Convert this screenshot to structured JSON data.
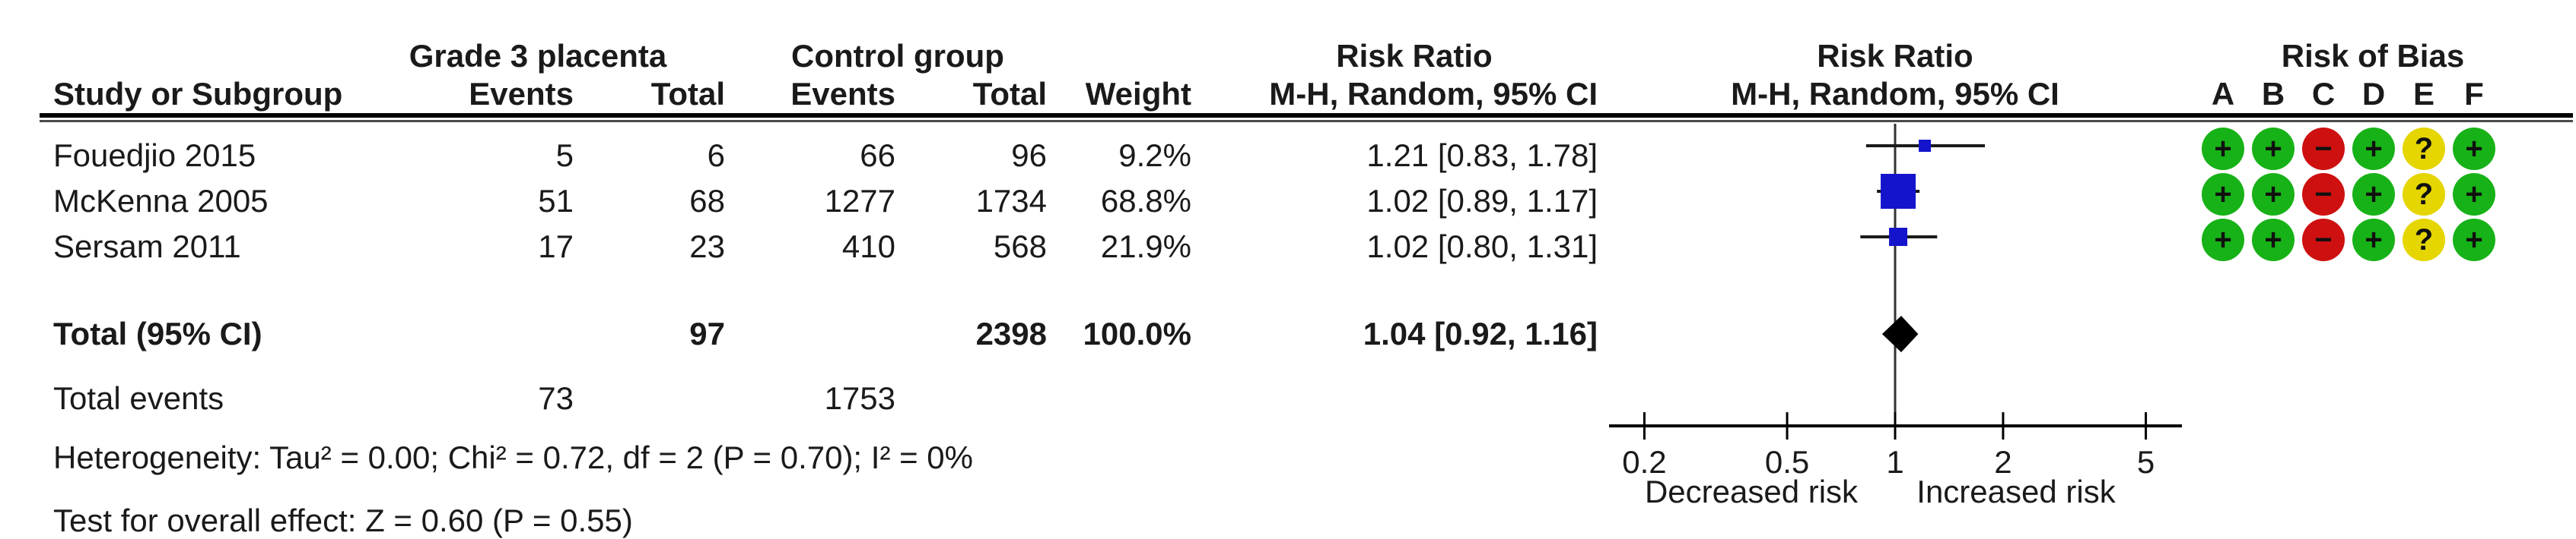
{
  "table": {
    "header": {
      "group1": "Grade 3 placenta",
      "group2": "Control group",
      "effect_title": "Risk Ratio",
      "study": "Study or Subgroup",
      "events": "Events",
      "total": "Total",
      "weight": "Weight",
      "method_ci": "M-H, Random, 95% CI"
    },
    "rows": [
      {
        "study": "Fouedjio 2015",
        "g3_events": "5",
        "g3_total": "6",
        "ctl_events": "66",
        "ctl_total": "96",
        "weight": "9.2%",
        "rr_ci": "1.21 [0.83, 1.78]"
      },
      {
        "study": "McKenna 2005",
        "g3_events": "51",
        "g3_total": "68",
        "ctl_events": "1277",
        "ctl_total": "1734",
        "weight": "68.8%",
        "rr_ci": "1.02 [0.89, 1.17]"
      },
      {
        "study": "Sersam 2011",
        "g3_events": "17",
        "g3_total": "23",
        "ctl_events": "410",
        "ctl_total": "568",
        "weight": "21.9%",
        "rr_ci": "1.02 [0.80, 1.31]"
      }
    ],
    "total_row": {
      "label": "Total (95% CI)",
      "g3_total": "97",
      "ctl_total": "2398",
      "weight": "100.0%",
      "rr_ci": "1.04 [0.92, 1.16]"
    },
    "total_events_row": {
      "label": "Total events",
      "g3_events": "73",
      "ctl_events": "1753"
    },
    "heterogeneity": "Heterogeneity: Tau² = 0.00; Chi² = 0.72, df = 2 (P = 0.70); I² = 0%",
    "overall_effect": "Test for overall effect: Z = 0.60 (P = 0.55)"
  },
  "plot": {
    "title": "Risk Ratio",
    "subtitle": "M-H, Random, 95% CI",
    "label_left": "Decreased risk",
    "label_right": "Increased risk"
  },
  "risk_of_bias": {
    "header": "Risk of Bias",
    "domains": [
      "A",
      "B",
      "C",
      "D",
      "E",
      "F"
    ],
    "judgements": [
      [
        "+",
        "+",
        "-",
        "+",
        "?",
        "+"
      ],
      [
        "+",
        "+",
        "-",
        "+",
        "?",
        "+"
      ],
      [
        "+",
        "+",
        "-",
        "+",
        "?",
        "+"
      ]
    ],
    "colors": {
      "+": "#17B217",
      "-": "#CE1010",
      "?": "#E5D500"
    }
  },
  "chart_data": {
    "type": "scatter",
    "subtype": "forest-plot",
    "title": "Risk Ratio",
    "method": "M-H, Random, 95% CI",
    "scale": "log10",
    "x_axis": {
      "ticks": [
        0.2,
        0.5,
        1,
        2,
        5
      ],
      "null_line": 1,
      "range": [
        0.15,
        6.5
      ],
      "label_left": "Decreased risk",
      "label_right": "Increased risk"
    },
    "studies": [
      {
        "name": "Fouedjio 2015",
        "rr": 1.21,
        "ci_low": 0.83,
        "ci_high": 1.78,
        "weight_pct": 9.2
      },
      {
        "name": "McKenna 2005",
        "rr": 1.02,
        "ci_low": 0.89,
        "ci_high": 1.17,
        "weight_pct": 68.8
      },
      {
        "name": "Sersam 2011",
        "rr": 1.02,
        "ci_low": 0.8,
        "ci_high": 1.31,
        "weight_pct": 21.9
      }
    ],
    "total": {
      "label": "Total (95% CI)",
      "rr": 1.04,
      "ci_low": 0.92,
      "ci_high": 1.16
    },
    "marker_color": "#1414CC",
    "diamond_color": "#000000",
    "line_color": "#1a1a1a"
  }
}
